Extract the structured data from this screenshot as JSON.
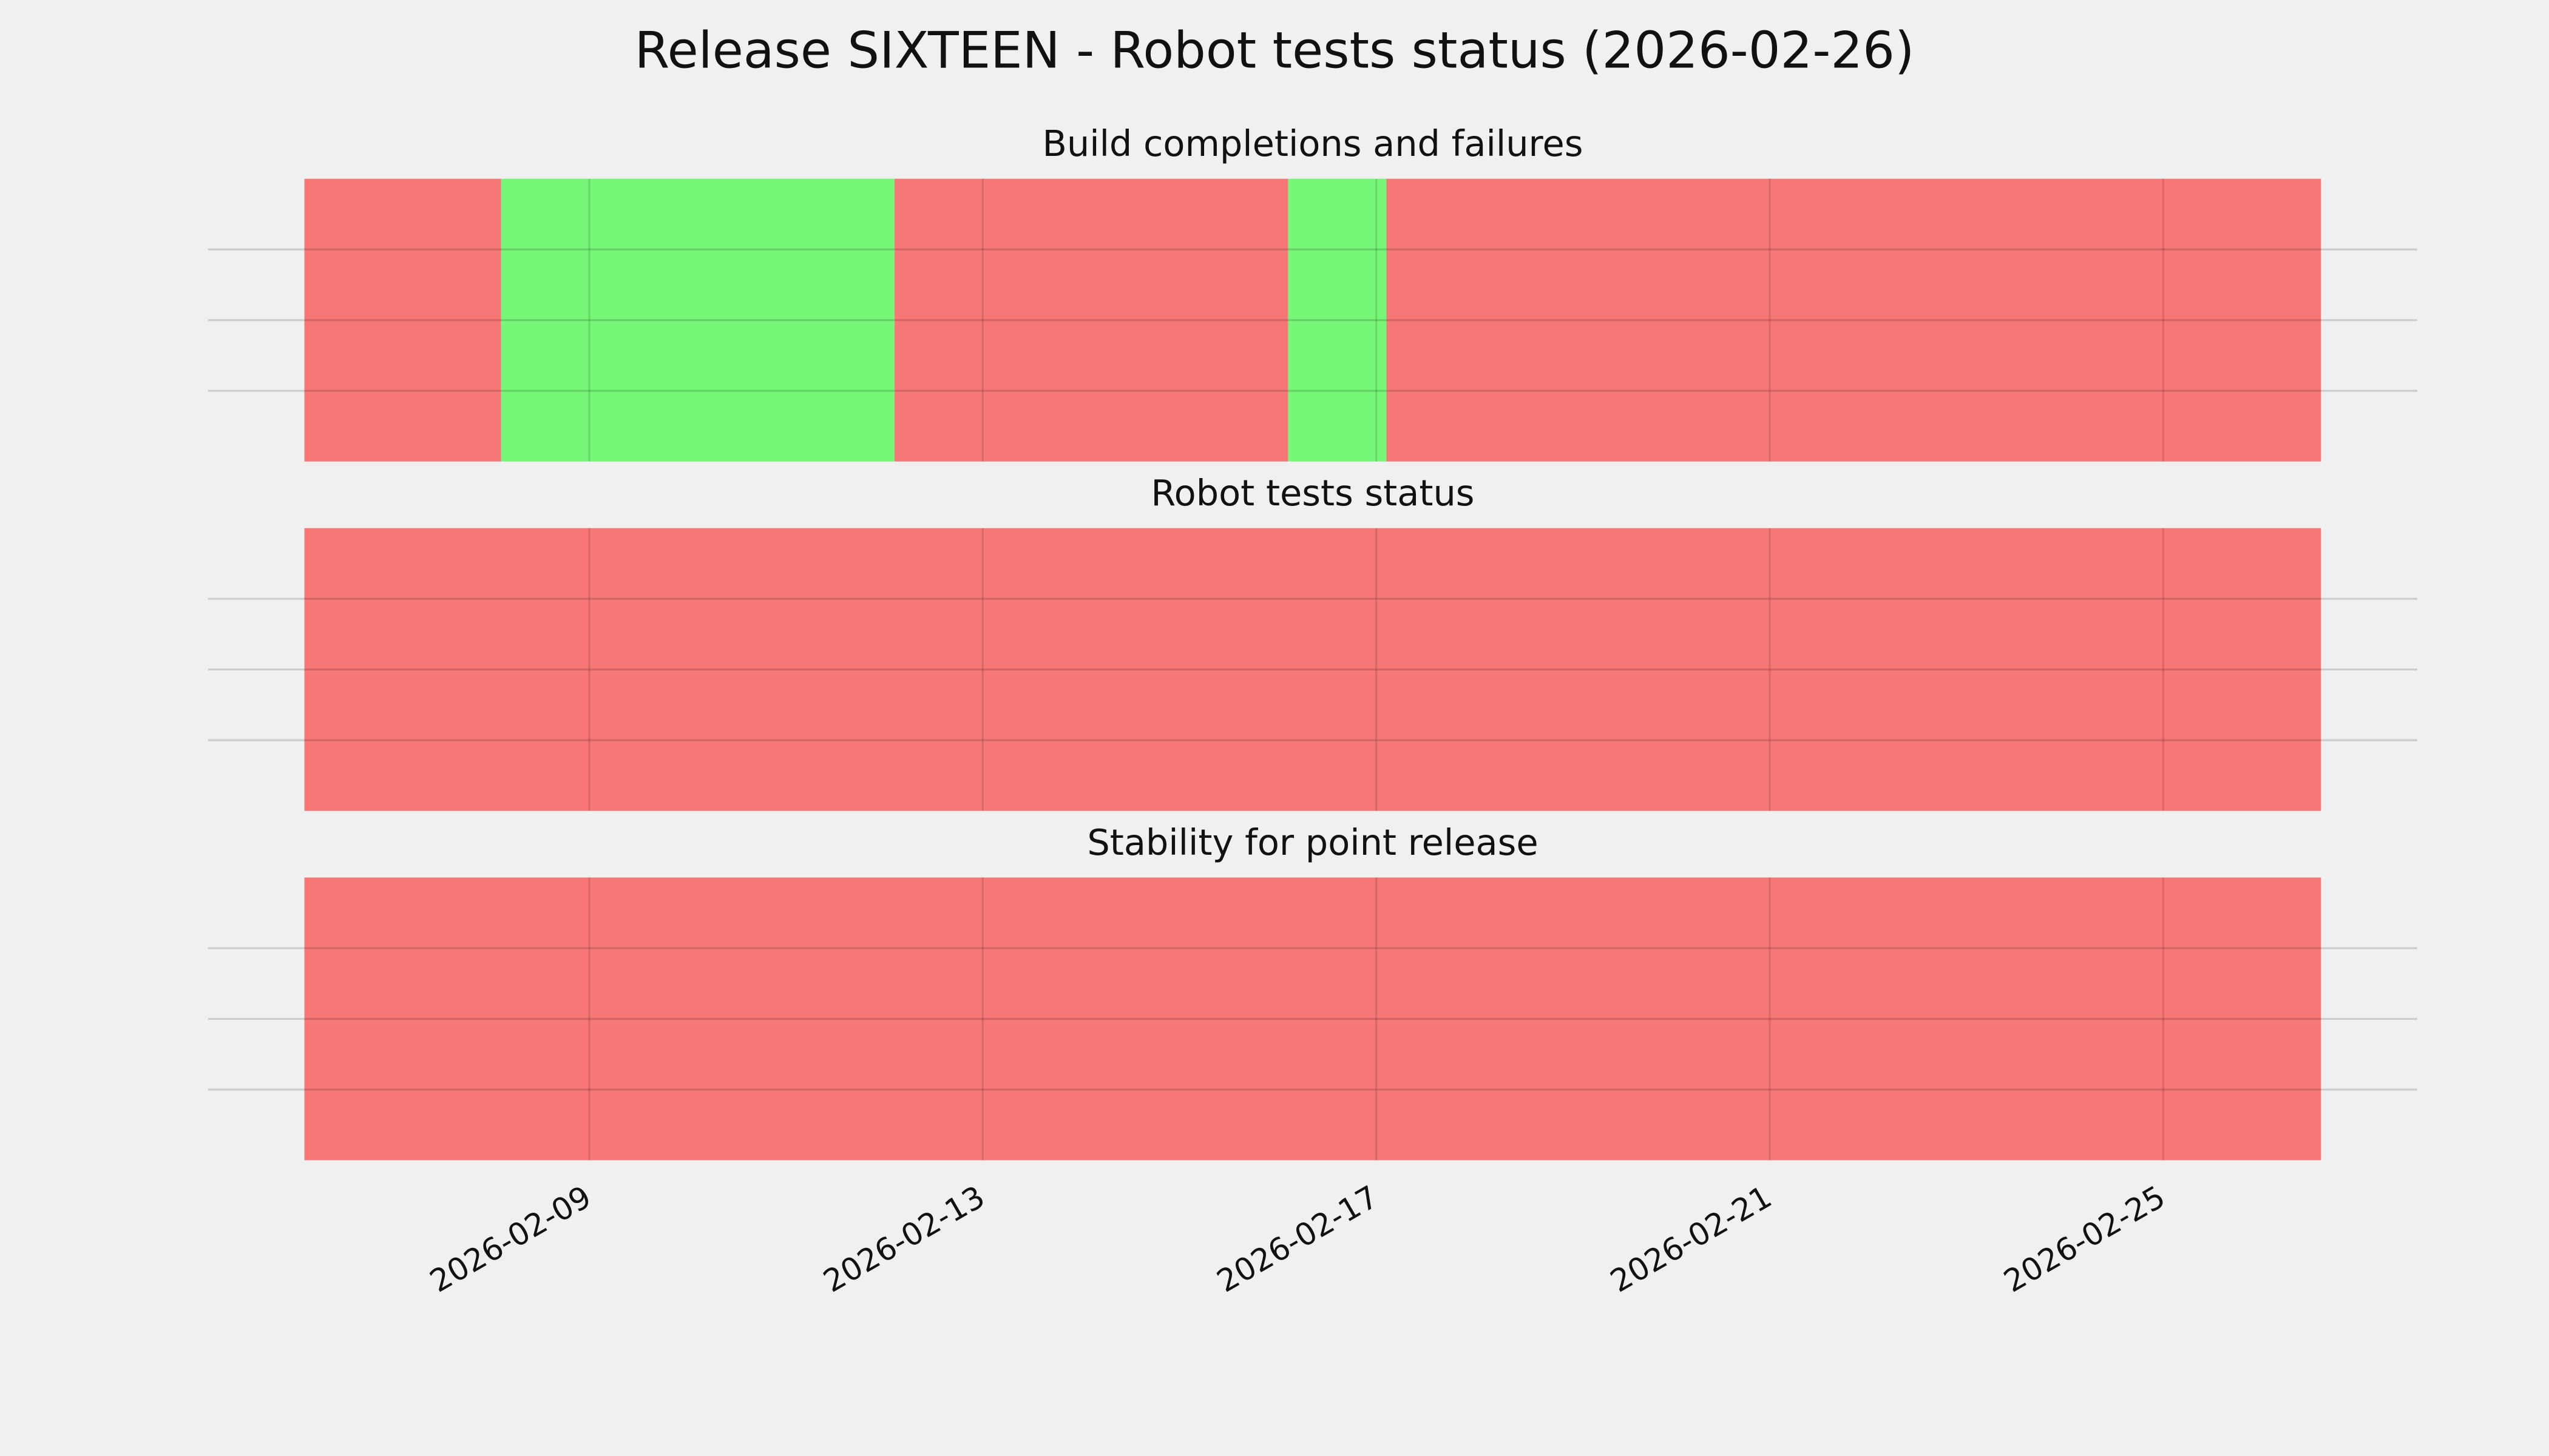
{
  "chart_data": {
    "type": "timeline",
    "title": "Release SIXTEEN - Robot tests status (2026-02-26)",
    "xlim": [
      "2026-02-05T03:00",
      "2026-02-27T14:00"
    ],
    "xticks": [
      "2026-02-09",
      "2026-02-13",
      "2026-02-17",
      "2026-02-21",
      "2026-02-25"
    ],
    "ylim": [
      0,
      1
    ],
    "yticks": [
      0.25,
      0.5,
      0.75
    ],
    "grid": true,
    "panels": [
      {
        "title": "Build completions and failures",
        "spans": [
          {
            "start": "2026-02-06T02:30",
            "end": "2026-02-08T02:30",
            "color": "#f77777"
          },
          {
            "start": "2026-02-08T02:30",
            "end": "2026-02-12T02:30",
            "color": "#77f777"
          },
          {
            "start": "2026-02-12T02:30",
            "end": "2026-02-16T02:30",
            "color": "#f77777"
          },
          {
            "start": "2026-02-16T02:30",
            "end": "2026-02-17T02:30",
            "color": "#77f777"
          },
          {
            "start": "2026-02-17T02:30",
            "end": "2026-02-26T14:30",
            "color": "#f77777"
          }
        ]
      },
      {
        "title": "Robot tests status",
        "spans": [
          {
            "start": "2026-02-06T02:30",
            "end": "2026-02-26T14:30",
            "color": "#f77777"
          }
        ]
      },
      {
        "title": "Stability for point release",
        "spans": [
          {
            "start": "2026-02-06T02:30",
            "end": "2026-02-26T14:30",
            "color": "#f77777"
          }
        ]
      }
    ]
  }
}
